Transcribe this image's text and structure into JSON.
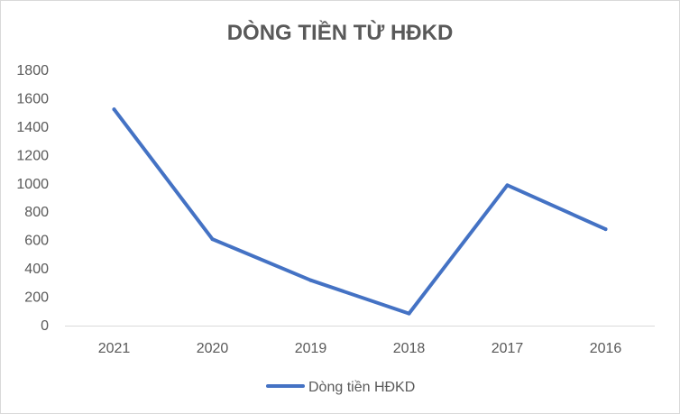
{
  "chart_data": {
    "type": "line",
    "title": "DÒNG TIỀN TỪ HĐKD",
    "categories": [
      "2021",
      "2020",
      "2019",
      "2018",
      "2017",
      "2016"
    ],
    "series": [
      {
        "name": "Dòng tiền HĐKD",
        "values": [
          1525,
          610,
          320,
          85,
          990,
          680
        ],
        "color": "#4472c4"
      }
    ],
    "ylim": [
      0,
      1800
    ],
    "yticks": [
      "0",
      "200",
      "400",
      "600",
      "800",
      "1000",
      "1200",
      "1400",
      "1600",
      "1800"
    ],
    "grid": false,
    "legend_position": "bottom"
  }
}
